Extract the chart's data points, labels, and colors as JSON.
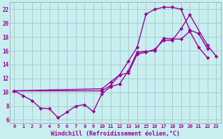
{
  "title": "",
  "xlabel": "Windchill (Refroidissement éolien,°C)",
  "ylabel": "",
  "bg_color": "#c8eef0",
  "line_color": "#990099",
  "grid_color": "#aacccc",
  "xlim": [
    -0.5,
    23.5
  ],
  "ylim": [
    5.5,
    23.0
  ],
  "xticks": [
    0,
    1,
    2,
    3,
    4,
    5,
    6,
    7,
    8,
    9,
    10,
    11,
    12,
    13,
    14,
    15,
    16,
    17,
    18,
    19,
    20,
    21,
    22,
    23
  ],
  "yticks": [
    6,
    8,
    10,
    12,
    14,
    16,
    18,
    20,
    22
  ],
  "line1_x": [
    0,
    1,
    2,
    3,
    4,
    5,
    6,
    7,
    8,
    9,
    10,
    11,
    12,
    13,
    14,
    15,
    16,
    17,
    18,
    19,
    20,
    21,
    22
  ],
  "line1_y": [
    10.2,
    9.5,
    8.8,
    7.7,
    7.6,
    6.3,
    7.1,
    8.0,
    8.2,
    7.2,
    9.8,
    10.8,
    11.2,
    13.1,
    15.8,
    15.9,
    16.0,
    17.8,
    17.7,
    17.7,
    18.8,
    16.5,
    15.0
  ],
  "line2_x": [
    0,
    10,
    11,
    12,
    13,
    14,
    15,
    16,
    17,
    18,
    19,
    20,
    21,
    22
  ],
  "line2_y": [
    10.2,
    10.5,
    11.5,
    12.5,
    14.5,
    16.5,
    21.3,
    22.0,
    22.3,
    22.3,
    22.0,
    19.0,
    18.5,
    16.3
  ],
  "line3_x": [
    0,
    10,
    11,
    12,
    13,
    14,
    15,
    16,
    17,
    18,
    19,
    20,
    22,
    23
  ],
  "line3_y": [
    10.2,
    10.2,
    11.0,
    12.5,
    12.8,
    15.5,
    15.8,
    16.2,
    17.5,
    17.5,
    19.2,
    21.2,
    16.8,
    15.2
  ]
}
